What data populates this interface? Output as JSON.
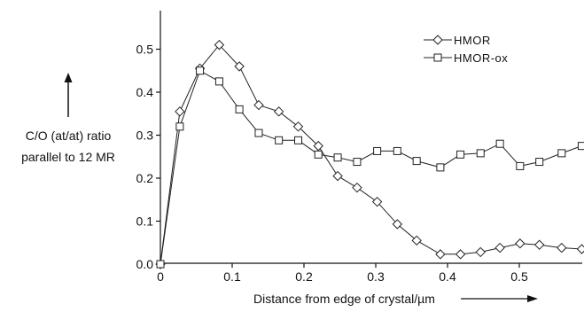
{
  "chart_data": {
    "type": "line",
    "title": "",
    "xlabel": "Distance from edge of crystal/µm",
    "ylabel": [
      "C/O (at/at) ratio",
      "parallel to 12 MR"
    ],
    "xlim": [
      0,
      0.59
    ],
    "ylim": [
      0,
      0.55
    ],
    "x_ticks": [
      "0",
      "0.1",
      "0.2",
      "0.3",
      "0.4",
      "0.5"
    ],
    "y_ticks": [
      "0.0",
      "0.1",
      "0.2",
      "0.3",
      "0.4",
      "0.5"
    ],
    "grid": false,
    "legend_position": "top-right",
    "series": [
      {
        "name": "HMOR",
        "marker": "diamond",
        "color": "#222222",
        "x": [
          0,
          0.027,
          0.055,
          0.082,
          0.11,
          0.137,
          0.165,
          0.192,
          0.22,
          0.247,
          0.274,
          0.302,
          0.33,
          0.357,
          0.39,
          0.418,
          0.446,
          0.473,
          0.501,
          0.528,
          0.559,
          0.587
        ],
        "y": [
          0.0,
          0.355,
          0.455,
          0.51,
          0.46,
          0.37,
          0.355,
          0.32,
          0.275,
          0.205,
          0.178,
          0.145,
          0.093,
          0.055,
          0.023,
          0.023,
          0.028,
          0.038,
          0.048,
          0.045,
          0.038,
          0.035
        ]
      },
      {
        "name": "HMOR-ox",
        "marker": "square",
        "color": "#222222",
        "x": [
          0,
          0.027,
          0.055,
          0.082,
          0.11,
          0.137,
          0.165,
          0.192,
          0.22,
          0.247,
          0.274,
          0.302,
          0.33,
          0.357,
          0.39,
          0.418,
          0.446,
          0.473,
          0.501,
          0.528,
          0.559,
          0.587
        ],
        "y": [
          0.0,
          0.32,
          0.45,
          0.425,
          0.36,
          0.305,
          0.288,
          0.288,
          0.255,
          0.248,
          0.238,
          0.263,
          0.263,
          0.24,
          0.225,
          0.255,
          0.258,
          0.28,
          0.228,
          0.238,
          0.258,
          0.275
        ]
      }
    ]
  }
}
